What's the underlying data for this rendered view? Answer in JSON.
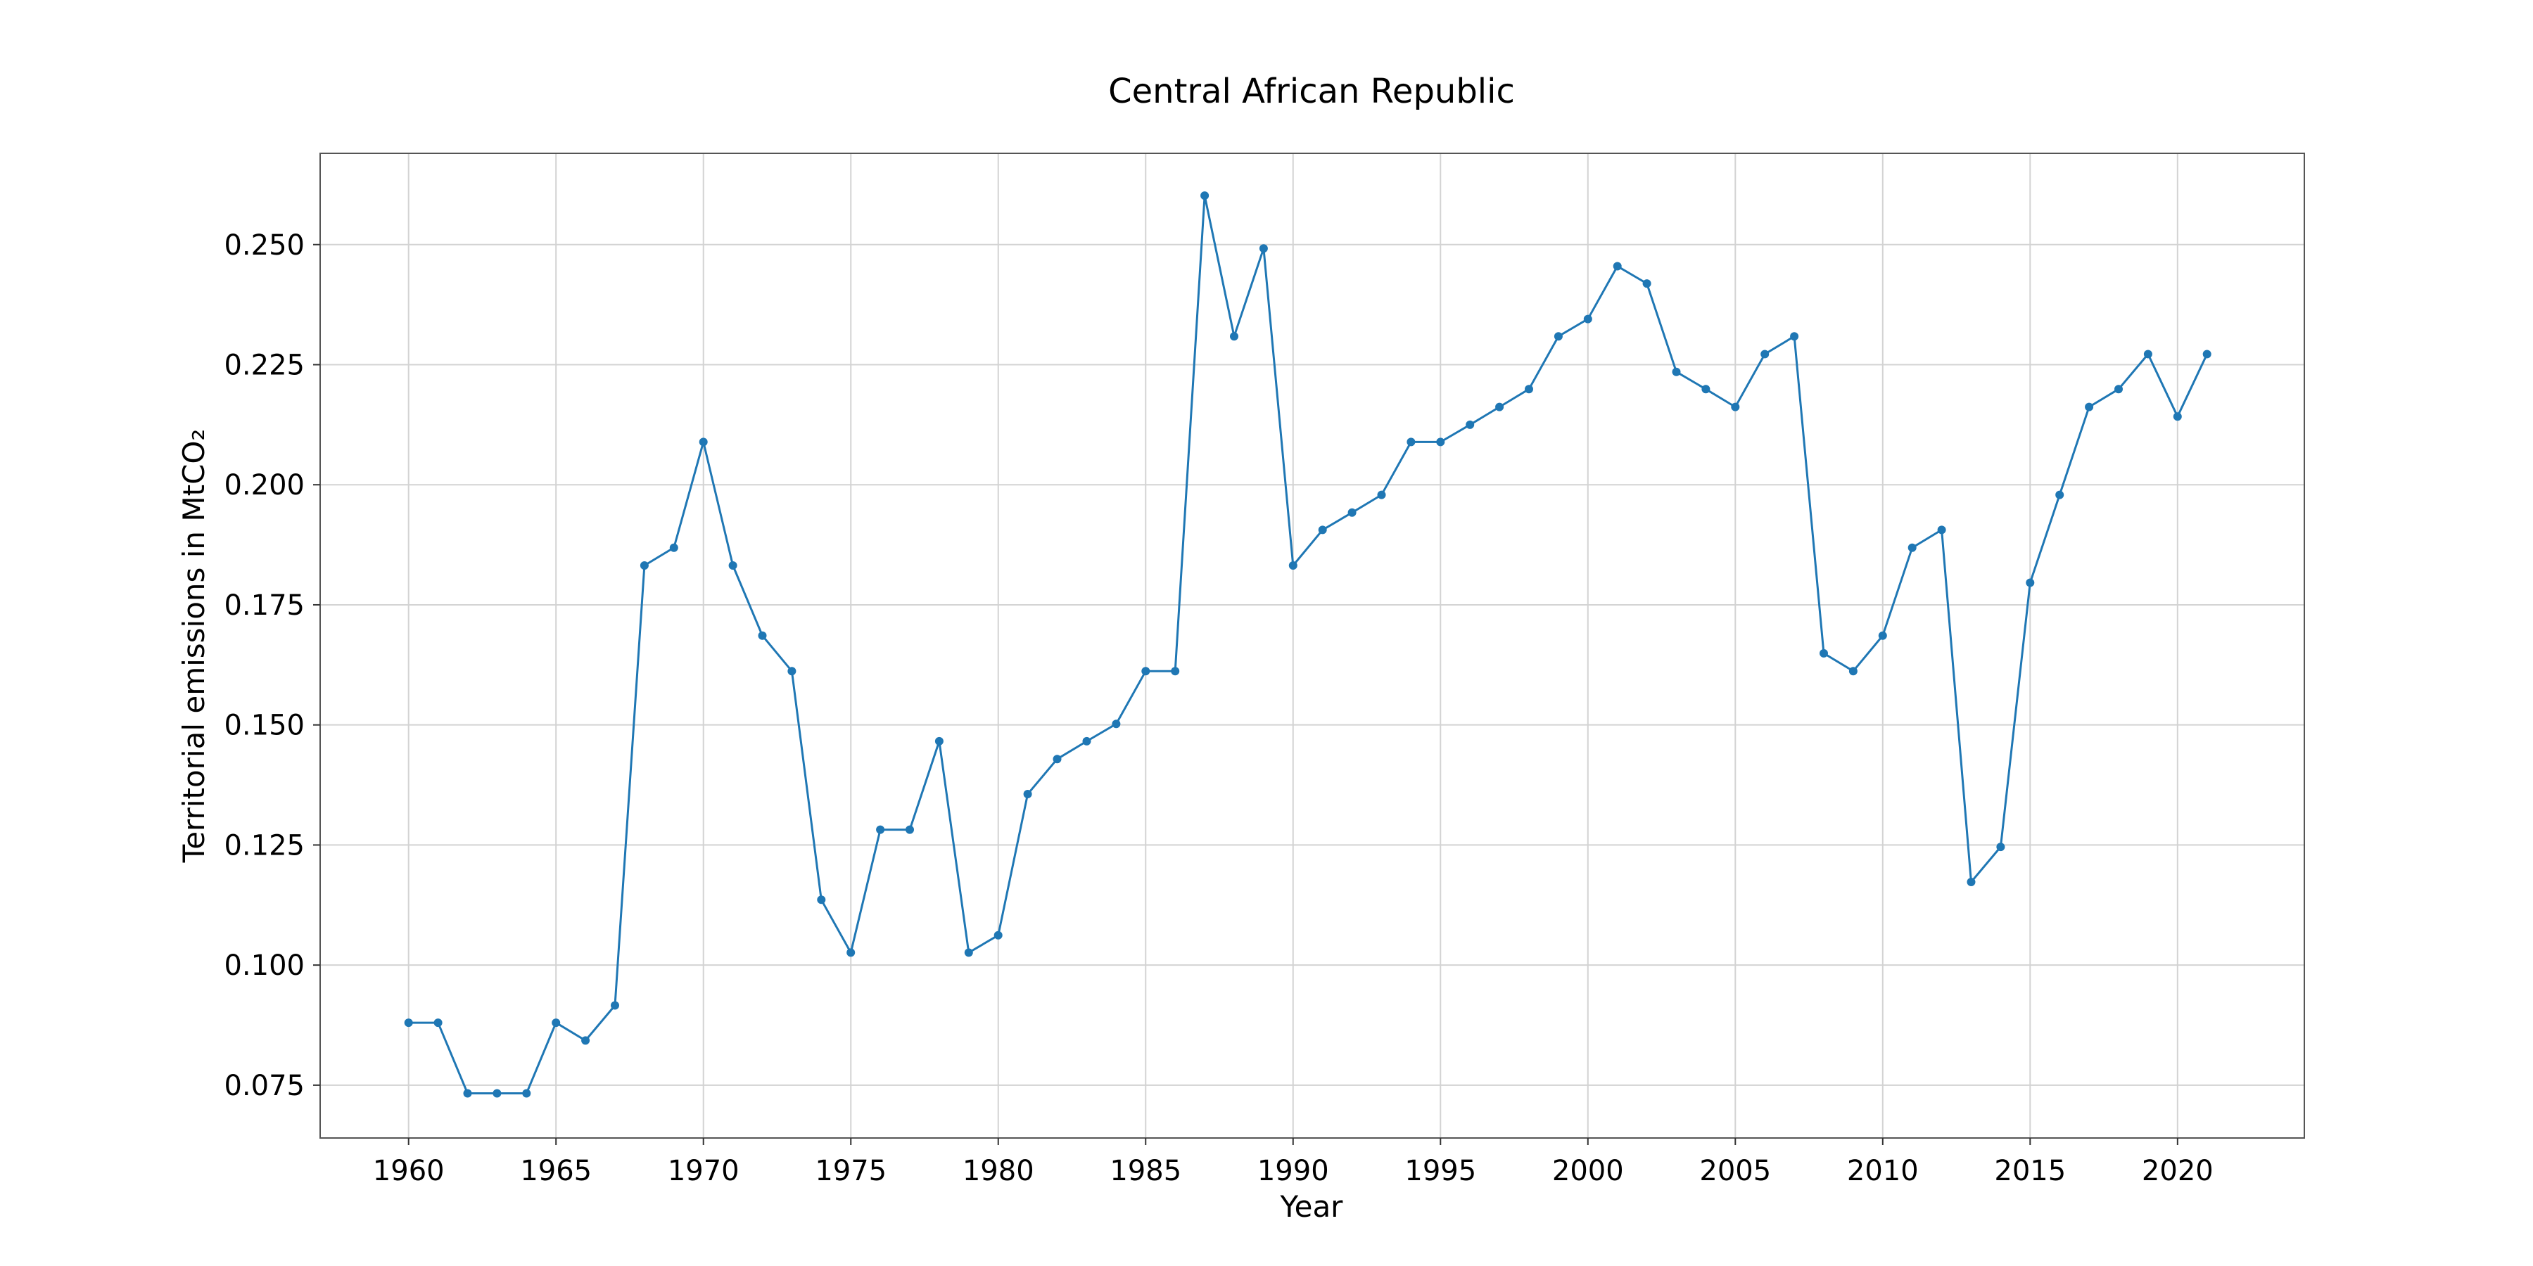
{
  "chart_data": {
    "type": "line",
    "title": "Central African Republic",
    "xlabel": "Year",
    "ylabel": "Territorial emissions in MtCO₂",
    "xlim": [
      1957,
      2024.3
    ],
    "ylim": [
      0.064,
      0.269
    ],
    "grid": true,
    "x_ticks": [
      1960,
      1965,
      1970,
      1975,
      1980,
      1985,
      1990,
      1995,
      2000,
      2005,
      2010,
      2015,
      2020
    ],
    "y_ticks": [
      0.075,
      0.1,
      0.125,
      0.15,
      0.175,
      0.2,
      0.225,
      0.25
    ],
    "x_tick_labels": [
      "1960",
      "1965",
      "1970",
      "1975",
      "1980",
      "1985",
      "1990",
      "1995",
      "2000",
      "2005",
      "2010",
      "2015",
      "2020"
    ],
    "y_tick_labels": [
      "0.075",
      "0.100",
      "0.125",
      "0.150",
      "0.175",
      "0.200",
      "0.225",
      "0.250"
    ],
    "series_color": "#1f77b4",
    "grid_color": "#d3d3d3",
    "x": [
      1960,
      1961,
      1962,
      1963,
      1964,
      1965,
      1966,
      1967,
      1968,
      1969,
      1970,
      1971,
      1972,
      1973,
      1974,
      1975,
      1976,
      1977,
      1978,
      1979,
      1980,
      1981,
      1982,
      1983,
      1984,
      1985,
      1986,
      1987,
      1988,
      1989,
      1990,
      1991,
      1992,
      1993,
      1994,
      1995,
      1996,
      1997,
      1998,
      1999,
      2000,
      2001,
      2002,
      2003,
      2004,
      2005,
      2006,
      2007,
      2008,
      2009,
      2010,
      2011,
      2012,
      2013,
      2014,
      2015,
      2016,
      2017,
      2018,
      2019,
      2020,
      2021
    ],
    "y": [
      0.088,
      0.088,
      0.0733,
      0.0733,
      0.0733,
      0.088,
      0.0843,
      0.0916,
      0.1832,
      0.1869,
      0.2089,
      0.1832,
      0.1686,
      0.1612,
      0.1136,
      0.1026,
      0.1282,
      0.1282,
      0.1466,
      0.1026,
      0.1062,
      0.1356,
      0.1429,
      0.1466,
      0.1502,
      0.1612,
      0.1612,
      0.2602,
      0.2309,
      0.2492,
      0.1832,
      0.1906,
      0.1942,
      0.1979,
      0.2089,
      0.2089,
      0.2125,
      0.2162,
      0.2199,
      0.2309,
      0.2345,
      0.2455,
      0.2419,
      0.2235,
      0.2199,
      0.2162,
      0.2272,
      0.2309,
      0.1649,
      0.1612,
      0.1686,
      0.1869,
      0.1906,
      0.1173,
      0.1246,
      0.1796,
      0.1979,
      0.2162,
      0.2199,
      0.2272,
      0.2142,
      0.2272
    ]
  }
}
